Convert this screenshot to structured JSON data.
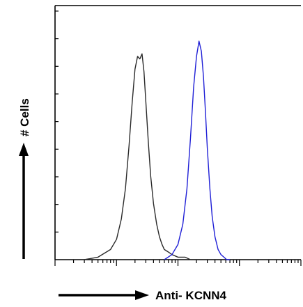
{
  "chart_data": {
    "type": "line",
    "title": "",
    "xlabel": "Anti- KCNN4",
    "ylabel": "# Cells",
    "x_scale": "log",
    "xlim": [
      1,
      10000
    ],
    "ylim": [
      0,
      100
    ],
    "grid": false,
    "legend": "none",
    "series": [
      {
        "color": "#2a2a2a",
        "x": [
          3,
          5,
          8,
          10,
          12,
          14,
          16,
          18,
          20,
          22,
          24,
          26,
          28,
          30,
          33,
          36,
          40,
          45,
          50,
          55,
          60,
          70,
          80,
          100,
          130,
          160,
          200,
          260
        ],
        "y": [
          0,
          1,
          4,
          8,
          16,
          28,
          45,
          62,
          75,
          80,
          79,
          81,
          74,
          62,
          46,
          33,
          22,
          14,
          9,
          6,
          4,
          3,
          2,
          1,
          1,
          0,
          0,
          0
        ]
      },
      {
        "color": "#1f1fd6",
        "x": [
          60,
          80,
          100,
          120,
          140,
          160,
          180,
          200,
          220,
          240,
          260,
          280,
          300,
          330,
          360,
          400,
          450,
          500,
          560,
          620,
          700
        ],
        "y": [
          0,
          2,
          6,
          14,
          28,
          48,
          68,
          80,
          86,
          82,
          72,
          58,
          44,
          28,
          17,
          9,
          4,
          2,
          1,
          0,
          0
        ]
      }
    ],
    "x_ticks_major": [
      1,
      10,
      100,
      1000,
      10000
    ],
    "y_tick_count": 9
  }
}
